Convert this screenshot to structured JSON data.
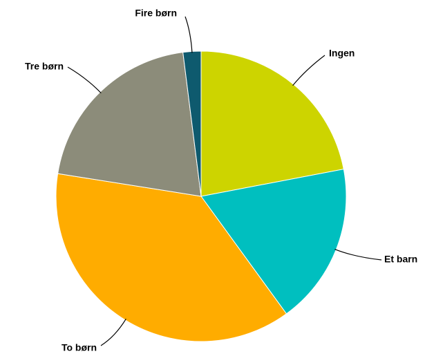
{
  "chart_data": {
    "type": "pie",
    "categories": [
      "Ingen",
      "Et barn",
      "To børn",
      "Tre børn",
      "Fire børn"
    ],
    "values": [
      22,
      18,
      37.5,
      20.5,
      2
    ],
    "colors": [
      "#cdd400",
      "#00bfbf",
      "#ffac00",
      "#8c8c7a",
      "#0e5a6e"
    ]
  }
}
